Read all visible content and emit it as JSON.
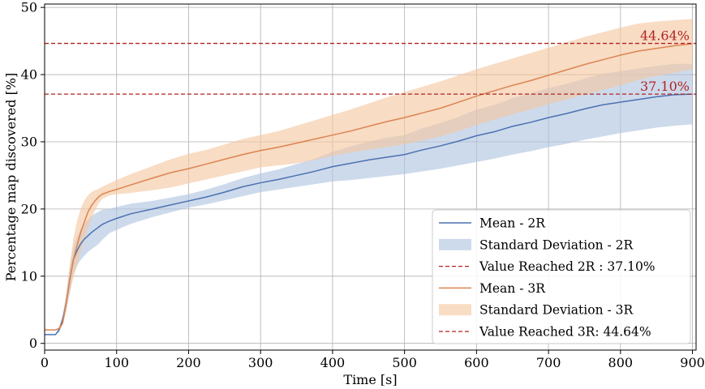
{
  "chart_data": {
    "type": "line",
    "xlabel": "Time [s]",
    "ylabel": "Percentage map discovered [%]",
    "xlim": [
      0,
      905
    ],
    "ylim": [
      -1,
      50.5
    ],
    "xticks": [
      "0",
      "100",
      "200",
      "300",
      "400",
      "500",
      "600",
      "700",
      "800",
      "900"
    ],
    "yticks": [
      "0",
      "10",
      "20",
      "30",
      "40",
      "50"
    ],
    "grid": true,
    "legend_position": "bottom-right",
    "series": [
      {
        "name": "Mean - 2R",
        "kind": "line",
        "color": "#4c72b0",
        "x": [
          0,
          15,
          20,
          25,
          30,
          35,
          40,
          45,
          50,
          55,
          60,
          65,
          70,
          75,
          80,
          90,
          100,
          120,
          150,
          175,
          200,
          225,
          250,
          275,
          300,
          325,
          350,
          375,
          400,
          425,
          450,
          475,
          500,
          525,
          550,
          575,
          600,
          625,
          650,
          675,
          700,
          725,
          750,
          775,
          800,
          825,
          850,
          875,
          900
        ],
        "y": [
          1.3,
          1.3,
          2.0,
          3.5,
          6.0,
          9.5,
          12.5,
          13.8,
          14.8,
          15.5,
          16.0,
          16.5,
          16.9,
          17.3,
          17.7,
          18.2,
          18.6,
          19.3,
          20.0,
          20.6,
          21.2,
          21.8,
          22.5,
          23.3,
          23.9,
          24.4,
          25.0,
          25.6,
          26.3,
          26.8,
          27.3,
          27.7,
          28.1,
          28.8,
          29.4,
          30.1,
          30.9,
          31.5,
          32.3,
          32.9,
          33.6,
          34.2,
          34.9,
          35.5,
          35.9,
          36.3,
          36.7,
          37.0,
          37.1
        ]
      },
      {
        "name": "Standard Deviation - 2R",
        "kind": "band",
        "color": "#aec3e0",
        "x": [
          0,
          15,
          20,
          25,
          30,
          35,
          40,
          45,
          50,
          55,
          60,
          65,
          70,
          75,
          80,
          90,
          100,
          120,
          150,
          175,
          200,
          225,
          250,
          275,
          300,
          325,
          350,
          375,
          400,
          425,
          450,
          475,
          500,
          525,
          550,
          575,
          600,
          625,
          650,
          675,
          700,
          725,
          750,
          775,
          800,
          825,
          850,
          875,
          900
        ],
        "lower": [
          1.3,
          1.3,
          1.6,
          2.8,
          4.8,
          7.5,
          10.5,
          11.6,
          12.4,
          13.0,
          13.6,
          14.0,
          14.4,
          14.8,
          15.4,
          16.4,
          16.9,
          17.8,
          18.8,
          19.5,
          20.2,
          20.7,
          21.3,
          21.9,
          22.5,
          22.9,
          23.3,
          23.7,
          24.1,
          24.3,
          24.6,
          24.9,
          25.2,
          25.6,
          26.0,
          26.5,
          27.0,
          27.5,
          28.1,
          28.6,
          29.2,
          29.7,
          30.3,
          30.8,
          31.3,
          31.7,
          32.1,
          32.4,
          32.6
        ],
        "upper": [
          1.3,
          1.3,
          2.4,
          4.2,
          7.3,
          11.4,
          14.3,
          15.8,
          17.0,
          17.8,
          18.4,
          18.9,
          19.3,
          19.6,
          19.9,
          20.0,
          20.3,
          20.8,
          21.2,
          21.7,
          22.2,
          22.9,
          23.7,
          24.6,
          25.3,
          25.9,
          26.7,
          27.5,
          28.5,
          29.3,
          30.0,
          30.6,
          31.0,
          32.0,
          32.8,
          33.7,
          34.8,
          35.5,
          36.5,
          37.2,
          38.0,
          38.6,
          39.4,
          40.1,
          40.5,
          40.9,
          41.3,
          41.6,
          41.6
        ]
      },
      {
        "name": "Value Reached 2R : 37.10%",
        "kind": "hline",
        "color": "#b22222",
        "value": 37.1,
        "annotation": "37.10%"
      },
      {
        "name": "Mean - 3R",
        "kind": "line",
        "color": "#dd8452",
        "x": [
          0,
          15,
          20,
          25,
          30,
          35,
          40,
          45,
          50,
          55,
          60,
          65,
          70,
          75,
          80,
          90,
          100,
          120,
          150,
          175,
          200,
          225,
          250,
          275,
          300,
          325,
          350,
          375,
          400,
          425,
          450,
          475,
          500,
          525,
          550,
          575,
          600,
          625,
          650,
          675,
          700,
          725,
          750,
          775,
          800,
          825,
          850,
          875,
          900
        ],
        "y": [
          2.0,
          2.0,
          2.2,
          3.0,
          6.0,
          9.5,
          12.5,
          14.5,
          16.5,
          18.0,
          19.5,
          20.5,
          21.2,
          21.8,
          22.2,
          22.6,
          22.9,
          23.6,
          24.6,
          25.4,
          26.0,
          26.7,
          27.4,
          28.1,
          28.7,
          29.2,
          29.8,
          30.4,
          31.0,
          31.6,
          32.3,
          33.0,
          33.6,
          34.3,
          35.0,
          35.9,
          36.8,
          37.6,
          38.4,
          39.1,
          39.9,
          40.7,
          41.5,
          42.2,
          42.9,
          43.5,
          43.9,
          44.3,
          44.6
        ]
      },
      {
        "name": "Standard Deviation - 3R",
        "kind": "band",
        "color": "#f4c69f",
        "x": [
          0,
          15,
          20,
          25,
          30,
          35,
          40,
          45,
          50,
          55,
          60,
          65,
          70,
          75,
          80,
          90,
          100,
          120,
          150,
          175,
          200,
          225,
          250,
          275,
          300,
          325,
          350,
          375,
          400,
          425,
          450,
          475,
          500,
          525,
          550,
          575,
          600,
          625,
          650,
          675,
          700,
          725,
          750,
          775,
          800,
          825,
          850,
          875,
          900
        ],
        "lower": [
          2.0,
          2.0,
          2.0,
          2.6,
          4.8,
          7.6,
          9.8,
          11.4,
          13.6,
          15.5,
          17.0,
          18.5,
          19.8,
          20.8,
          21.5,
          22.0,
          22.2,
          22.4,
          22.8,
          23.2,
          23.8,
          24.4,
          25.0,
          25.6,
          26.2,
          26.5,
          26.8,
          27.3,
          27.9,
          28.4,
          28.8,
          29.2,
          29.6,
          30.2,
          30.8,
          31.6,
          32.5,
          33.3,
          34.1,
          34.8,
          35.6,
          36.3,
          37.0,
          37.7,
          38.4,
          39.2,
          39.8,
          40.3,
          40.8
        ],
        "upper": [
          2.0,
          2.0,
          2.5,
          3.6,
          7.4,
          11.8,
          15.6,
          18.2,
          20.0,
          21.2,
          22.0,
          22.5,
          22.8,
          23.0,
          23.3,
          23.8,
          24.3,
          25.2,
          26.4,
          27.4,
          28.2,
          28.8,
          29.6,
          30.4,
          31.0,
          31.6,
          32.4,
          33.2,
          34.0,
          34.8,
          35.7,
          36.6,
          37.4,
          38.2,
          39.0,
          39.9,
          40.8,
          41.6,
          42.4,
          43.2,
          44.0,
          44.8,
          45.6,
          46.3,
          47.0,
          47.6,
          47.9,
          48.1,
          48.3
        ]
      },
      {
        "name": "Value Reached 3R: 44.64%",
        "kind": "hline",
        "color": "#b22222",
        "value": 44.64,
        "annotation": "44.64%"
      }
    ],
    "legend": [
      "Mean - 2R",
      "Standard Deviation - 2R",
      "Value Reached 2R : 37.10%",
      "Mean - 3R",
      "Standard Deviation - 3R",
      "Value Reached 3R: 44.64%"
    ]
  }
}
